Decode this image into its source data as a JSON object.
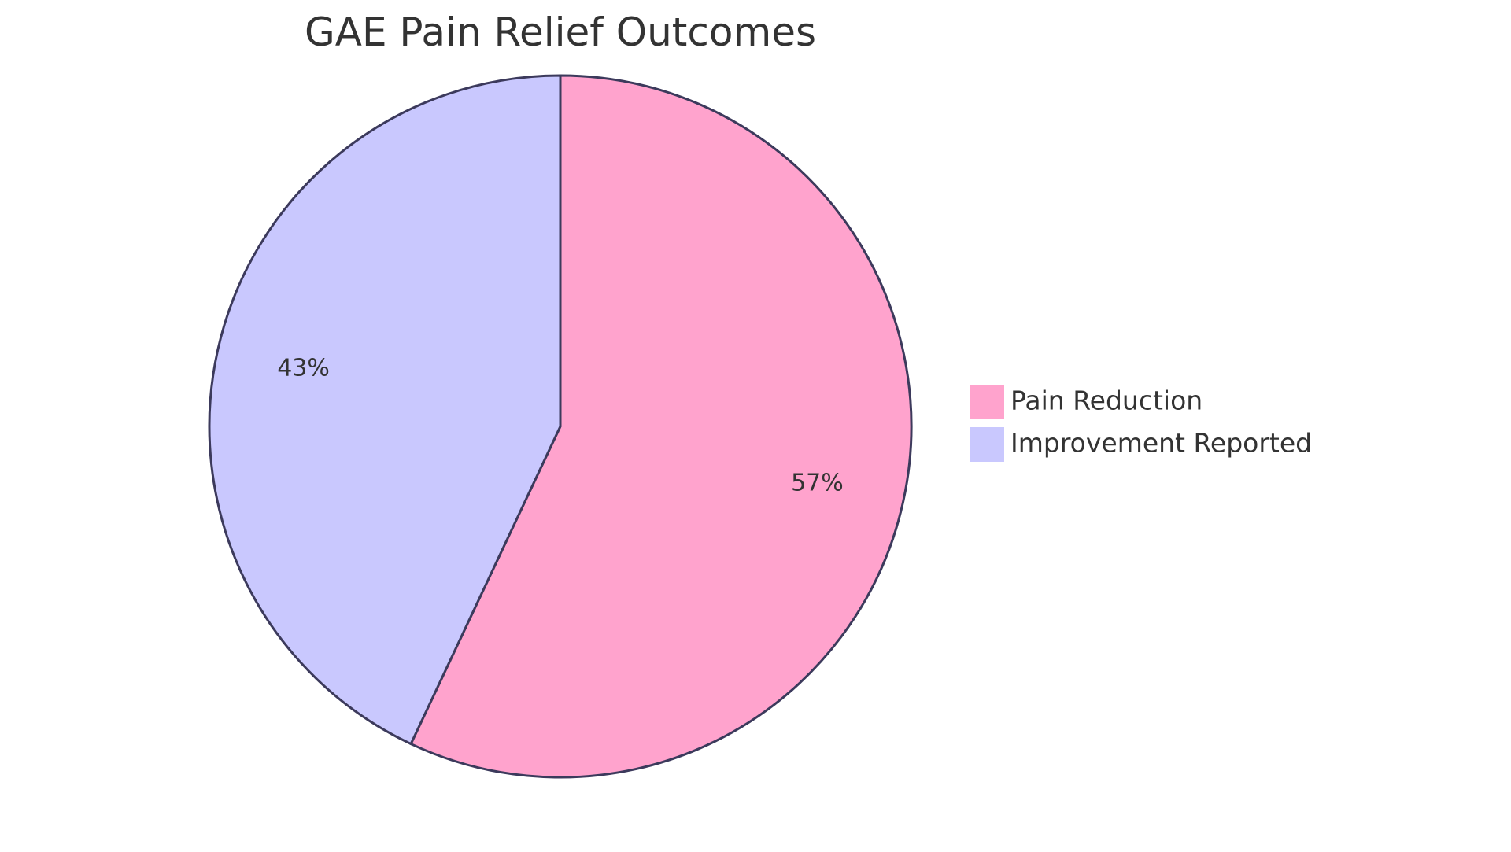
{
  "chart_data": {
    "type": "pie",
    "title": "GAE Pain Relief Outcomes",
    "categories": [
      "Pain Reduction",
      "Improvement Reported"
    ],
    "values": [
      57,
      43
    ],
    "labels": [
      "57%",
      "43%"
    ],
    "colors": [
      "#FFA3CD",
      "#C9C8FE"
    ],
    "slice_border_color": "#3C3A5C",
    "start_angle_deg": 0,
    "direction": "clockwise",
    "legend": {
      "position": "right",
      "items": [
        {
          "label": "Pain Reduction",
          "color": "#FFA3CD"
        },
        {
          "label": "Improvement Reported",
          "color": "#C9C8FE"
        }
      ]
    }
  }
}
